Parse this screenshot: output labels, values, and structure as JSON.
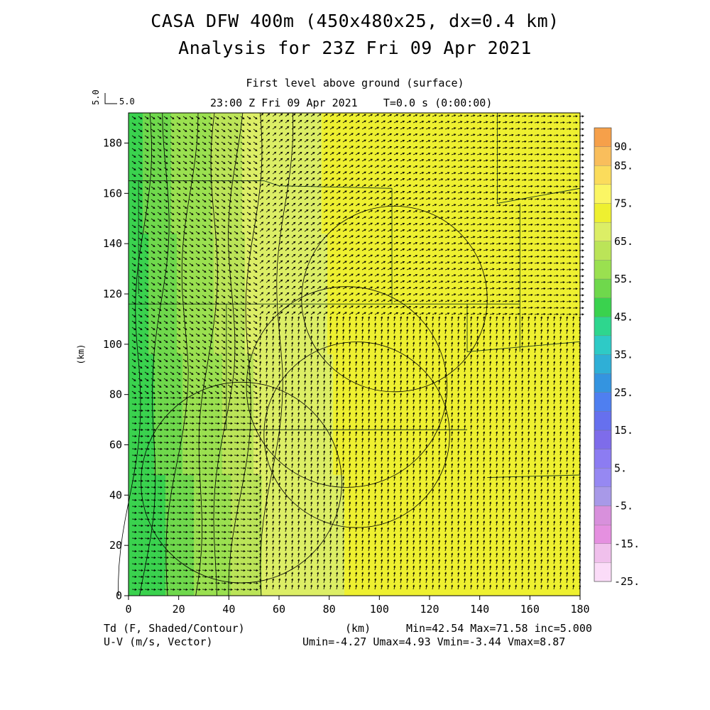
{
  "header": {
    "title_line1": "CASA DFW 400m (450x480x25, dx=0.4 km)",
    "title_line2": "Analysis for 23Z Fri 09 Apr 2021",
    "level": "First level above ground (surface)",
    "time": "23:00 Z Fri 09 Apr 2021    T=0.0 s (0:00:00)",
    "ref_vector_value": "5.0",
    "ref_vector_value_vertical": "5.0"
  },
  "footer": {
    "left_line1": "Td (F, Shaded/Contour)",
    "left_line2": "U-V (m/s, Vector)",
    "center_unit": "(km)",
    "right_line1": "Min=42.54 Max=71.58 inc=5.000",
    "right_line2": "Umin=-4.27 Umax=4.93 Vmin=-3.44 Vmax=8.87"
  },
  "chart_data": {
    "type": "heatmap",
    "title": "CASA DFW 400m (450x480x25, dx=0.4 km)",
    "xlabel": "",
    "ylabel": "(km)",
    "xlim": [
      0,
      180
    ],
    "ylim": [
      0,
      192
    ],
    "x_ticks": [
      0,
      20,
      40,
      60,
      80,
      100,
      120,
      140,
      160,
      180
    ],
    "y_ticks": [
      0,
      20,
      40,
      60,
      80,
      100,
      120,
      140,
      160,
      180
    ],
    "field": "Td (F)",
    "min": 42.54,
    "max": 71.58,
    "increment": 5.0,
    "dewpoint_by_x_km": [
      {
        "x": 0,
        "td": 45
      },
      {
        "x": 10,
        "td": 51
      },
      {
        "x": 20,
        "td": 55
      },
      {
        "x": 30,
        "td": 58
      },
      {
        "x": 40,
        "td": 62
      },
      {
        "x": 50,
        "td": 66
      },
      {
        "x": 60,
        "td": 69
      },
      {
        "x": 80,
        "td": 70
      },
      {
        "x": 120,
        "td": 70
      },
      {
        "x": 150,
        "td": 71
      },
      {
        "x": 180,
        "td": 71
      }
    ],
    "wind": {
      "units": "m/s",
      "umin": -4.27,
      "umax": 4.93,
      "vmin": -3.44,
      "vmax": 8.87,
      "reference_vector": 5.0
    },
    "colorbar": {
      "labels": [
        "90.",
        "85.",
        "75.",
        "65.",
        "55.",
        "45.",
        "35.",
        "25.",
        "15.",
        "5.",
        "-5.",
        "-15.",
        "-25."
      ],
      "bins": [
        {
          "from": -25,
          "to": -20,
          "color": "#fbdcf8"
        },
        {
          "from": -20,
          "to": -15,
          "color": "#f0c0ec"
        },
        {
          "from": -15,
          "to": -10,
          "color": "#e590e0"
        },
        {
          "from": -10,
          "to": -5,
          "color": "#d890dc"
        },
        {
          "from": -5,
          "to": 0,
          "color": "#a899e8"
        },
        {
          "from": 0,
          "to": 5,
          "color": "#9688f2"
        },
        {
          "from": 5,
          "to": 10,
          "color": "#8c7cf2"
        },
        {
          "from": 10,
          "to": 15,
          "color": "#7e6cea"
        },
        {
          "from": 15,
          "to": 20,
          "color": "#6670ee"
        },
        {
          "from": 20,
          "to": 25,
          "color": "#4f7ff0"
        },
        {
          "from": 25,
          "to": 30,
          "color": "#3494e0"
        },
        {
          "from": 30,
          "to": 35,
          "color": "#2fafd6"
        },
        {
          "from": 35,
          "to": 40,
          "color": "#2ecac6"
        },
        {
          "from": 40,
          "to": 45,
          "color": "#2ed68e"
        },
        {
          "from": 45,
          "to": 50,
          "color": "#3ad24e"
        },
        {
          "from": 50,
          "to": 55,
          "color": "#6fd84c"
        },
        {
          "from": 55,
          "to": 60,
          "color": "#9ae050"
        },
        {
          "from": 60,
          "to": 65,
          "color": "#bbe458"
        },
        {
          "from": 65,
          "to": 70,
          "color": "#dcee66"
        },
        {
          "from": 70,
          "to": 75,
          "color": "#eef030"
        },
        {
          "from": 75,
          "to": 80,
          "color": "#fbf664"
        },
        {
          "from": 80,
          "to": 85,
          "color": "#fbdc5c"
        },
        {
          "from": 85,
          "to": 90,
          "color": "#f9be5c"
        },
        {
          "from": 90,
          "to": 95,
          "color": "#f6a04a"
        }
      ]
    }
  }
}
